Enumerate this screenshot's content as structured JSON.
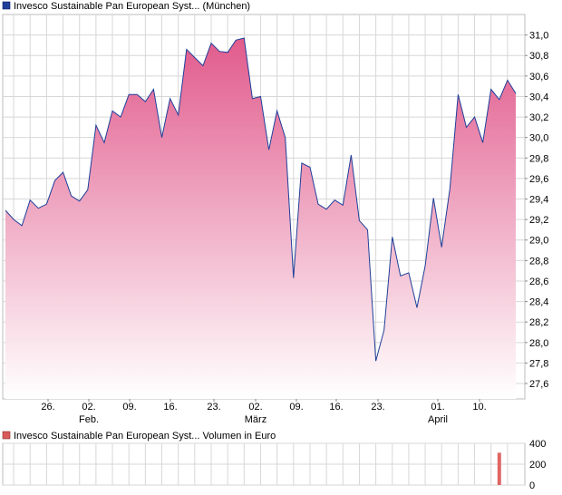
{
  "chart_data": [
    {
      "type": "area",
      "legend": {
        "label": "Invesco Sustainable Pan European Syst... (München)",
        "color": "#1f3f99",
        "placement": "top-left"
      },
      "x_labels": [
        {
          "day": "26.",
          "month": ""
        },
        {
          "day": "02.",
          "month": "Feb."
        },
        {
          "day": "09.",
          "month": ""
        },
        {
          "day": "16.",
          "month": ""
        },
        {
          "day": "23.",
          "month": ""
        },
        {
          "day": "02.",
          "month": "März"
        },
        {
          "day": "09.",
          "month": ""
        },
        {
          "day": "16.",
          "month": ""
        },
        {
          "day": "23.",
          "month": ""
        },
        {
          "day": "01.",
          "month": "April"
        },
        {
          "day": "10.",
          "month": ""
        }
      ],
      "y_ticks": [
        "27,6",
        "27,8",
        "28,0",
        "28,2",
        "28,4",
        "28,6",
        "28,8",
        "29,0",
        "29,2",
        "29,4",
        "29,6",
        "29,8",
        "30,0",
        "30,2",
        "30,4",
        "30,6",
        "30,8",
        "31,0"
      ],
      "ylim": [
        27.45,
        31.2
      ],
      "grid": true,
      "line_color": "#1f3f99",
      "fill_top_color": "#e15b8c",
      "fill_bottom_color": "#ffffff",
      "series": [
        {
          "values": [
            29.29,
            29.2,
            29.14,
            29.39,
            29.31,
            29.35,
            29.58,
            29.66,
            29.43,
            29.38,
            29.49,
            30.12,
            29.95,
            30.26,
            30.2,
            30.42,
            30.42,
            30.35,
            30.47,
            30.0,
            30.38,
            30.22,
            30.86,
            30.78,
            30.7,
            30.92,
            30.84,
            30.83,
            30.95,
            30.97,
            30.38,
            30.4,
            29.88,
            30.26,
            30.0,
            28.63,
            29.75,
            29.71,
            29.35,
            29.3,
            29.39,
            29.34,
            29.83,
            29.19,
            29.1,
            27.82,
            28.12,
            29.03,
            28.65,
            28.68,
            28.34,
            28.75,
            29.41,
            28.93,
            29.5,
            30.42,
            30.1,
            30.2,
            29.95,
            30.47,
            30.37,
            30.56,
            30.43
          ]
        }
      ]
    },
    {
      "type": "bar",
      "legend": {
        "label": "Invesco Sustainable Pan European Syst... Volumen in Euro",
        "color": "#d85a5a",
        "placement": "top-left"
      },
      "y_ticks": [
        "0",
        "200",
        "400"
      ],
      "ylim": [
        0,
        400
      ],
      "grid": true,
      "bar_color": "#e06666",
      "values": [
        0,
        0,
        0,
        0,
        0,
        0,
        0,
        0,
        0,
        0,
        0,
        0,
        0,
        0,
        0,
        0,
        0,
        0,
        0,
        0,
        0,
        0,
        0,
        0,
        0,
        0,
        0,
        0,
        0,
        0,
        0,
        0,
        0,
        0,
        0,
        0,
        0,
        0,
        0,
        0,
        0,
        0,
        0,
        0,
        0,
        0,
        0,
        0,
        0,
        0,
        0,
        0,
        0,
        0,
        0,
        0,
        0,
        0,
        0,
        0,
        310,
        0,
        0
      ]
    }
  ]
}
